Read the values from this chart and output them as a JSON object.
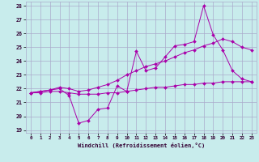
{
  "xlabel": "Windchill (Refroidissement éolien,°C)",
  "background_color": "#c8ecec",
  "grid_color": "#aaaacc",
  "line_color": "#aa00aa",
  "xlim_min": -0.5,
  "xlim_max": 23.5,
  "ylim_min": 18.8,
  "ylim_max": 28.3,
  "yticks": [
    19,
    20,
    21,
    22,
    23,
    24,
    25,
    26,
    27,
    28
  ],
  "xticks": [
    0,
    1,
    2,
    3,
    4,
    5,
    6,
    7,
    8,
    9,
    10,
    11,
    12,
    13,
    14,
    15,
    16,
    17,
    18,
    19,
    20,
    21,
    22,
    23
  ],
  "x": [
    0,
    1,
    2,
    3,
    4,
    5,
    6,
    7,
    8,
    9,
    10,
    11,
    12,
    13,
    14,
    15,
    16,
    17,
    18,
    19,
    20,
    21,
    22,
    23
  ],
  "line1": [
    21.7,
    21.8,
    21.9,
    22.0,
    21.5,
    19.5,
    19.7,
    20.5,
    20.6,
    22.2,
    21.8,
    24.7,
    23.3,
    23.5,
    24.3,
    25.1,
    25.2,
    25.4,
    28.0,
    25.9,
    24.8,
    23.3,
    22.7,
    22.5
  ],
  "line2": [
    21.7,
    21.8,
    21.9,
    22.1,
    22.0,
    21.8,
    21.9,
    22.1,
    22.3,
    22.6,
    23.0,
    23.3,
    23.6,
    23.8,
    24.0,
    24.3,
    24.6,
    24.8,
    25.1,
    25.3,
    25.6,
    25.4,
    25.0,
    24.8
  ],
  "line3": [
    21.7,
    21.7,
    21.8,
    21.8,
    21.7,
    21.6,
    21.6,
    21.6,
    21.7,
    21.7,
    21.8,
    21.9,
    22.0,
    22.1,
    22.1,
    22.2,
    22.3,
    22.3,
    22.4,
    22.4,
    22.5,
    22.5,
    22.5,
    22.5
  ]
}
